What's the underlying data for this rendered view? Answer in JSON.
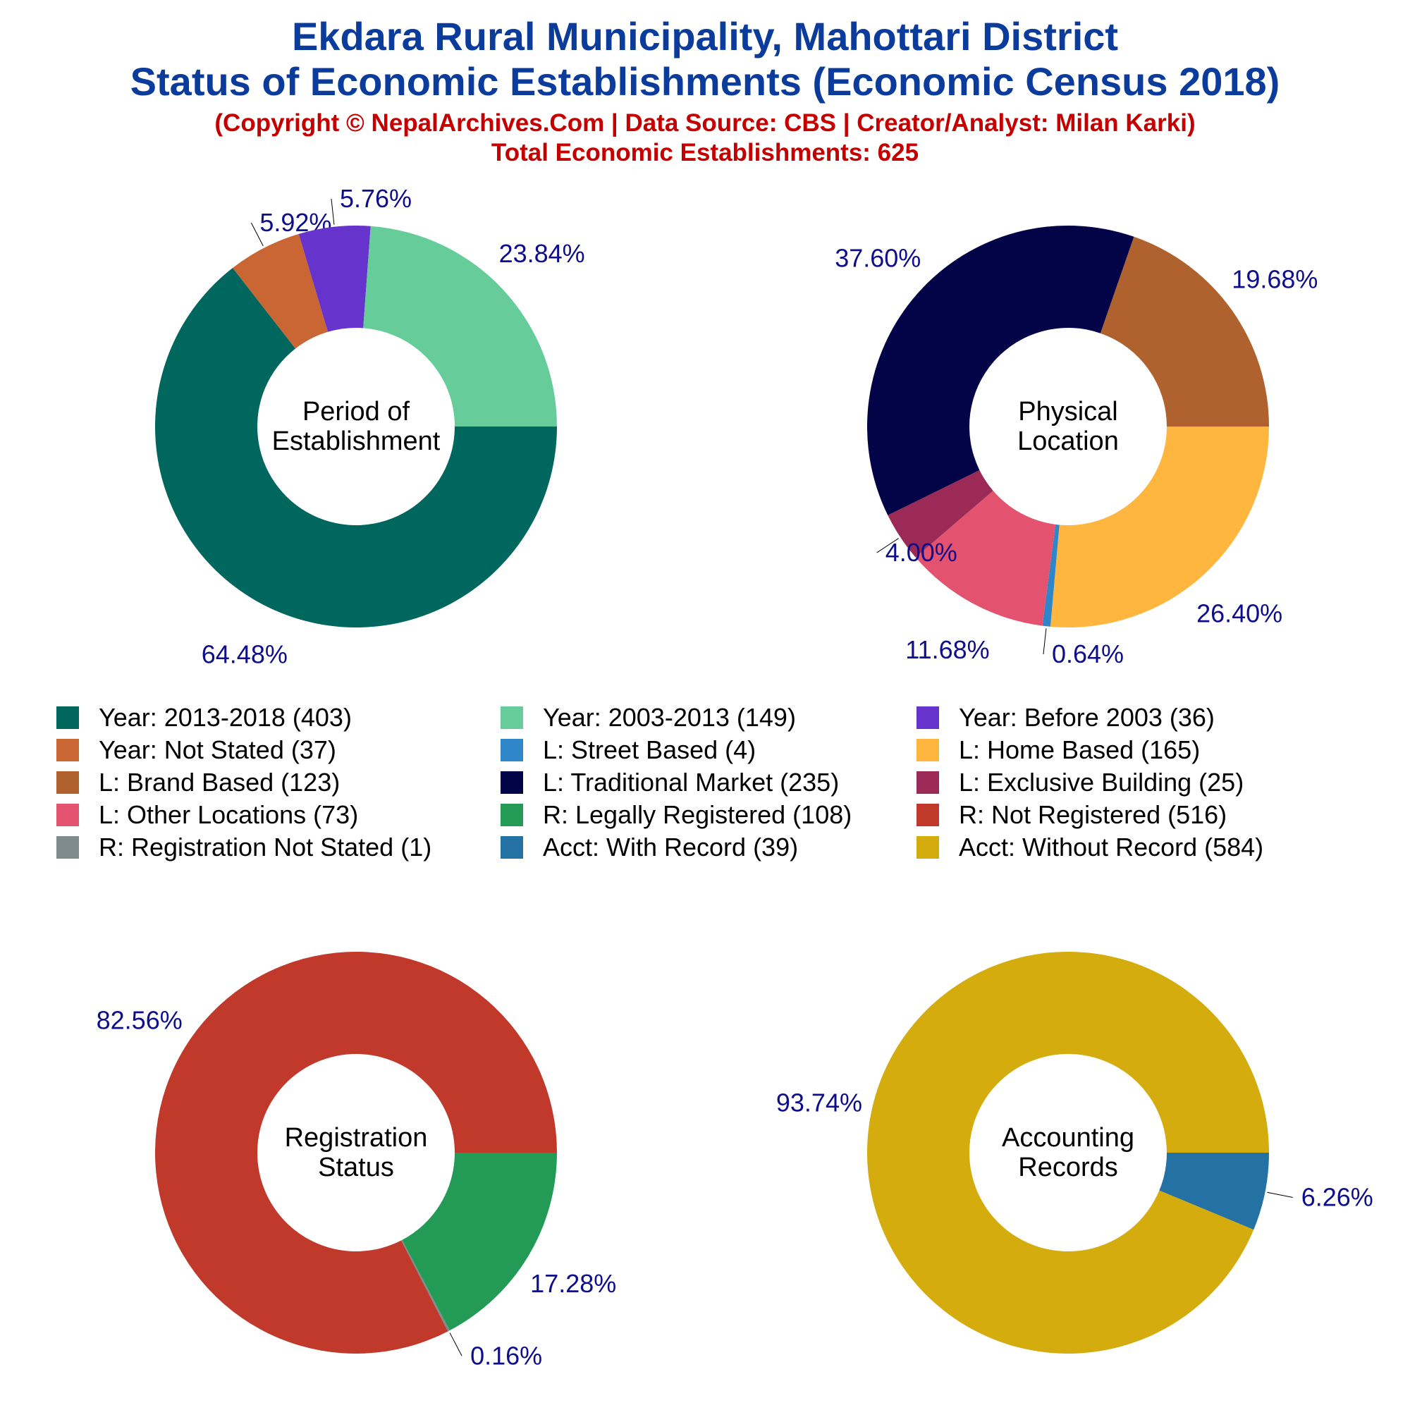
{
  "header": {
    "title_line1": "Ekdara Rural Municipality, Mahottari District",
    "title_line2": "Status of Economic Establishments (Economic Census 2018)",
    "copyright": "(Copyright © NepalArchives.Com | Data Source: CBS | Creator/Analyst: Milan Karki)",
    "total": "Total Economic Establishments: 625"
  },
  "colors": {
    "title": "#0B3C9C",
    "subtitle": "#C40000",
    "percent_label": "#0E0E8C"
  },
  "chart_data": [
    {
      "type": "pie",
      "center_label": [
        "Period of",
        "Establishment"
      ],
      "slices": [
        {
          "label": "Year: 2013-2018",
          "value": 403,
          "percent": "64.48%",
          "color": "#00675F"
        },
        {
          "label": "Year: Not Stated",
          "value": 37,
          "percent": "5.92%",
          "color": "#C96634"
        },
        {
          "label": "Year: Before 2003",
          "value": 36,
          "percent": "5.76%",
          "color": "#6633CC"
        },
        {
          "label": "Year: 2003-2013",
          "value": 149,
          "percent": "23.84%",
          "color": "#66CC99"
        }
      ]
    },
    {
      "type": "pie",
      "center_label": [
        "Physical",
        "Location"
      ],
      "slices": [
        {
          "label": "L: Home Based",
          "value": 165,
          "percent": "26.40%",
          "color": "#FFB63F"
        },
        {
          "label": "L: Street Based",
          "value": 4,
          "percent": "0.64%",
          "color": "#2F86C8"
        },
        {
          "label": "L: Other Locations",
          "value": 73,
          "percent": "11.68%",
          "color": "#E3526F"
        },
        {
          "label": "L: Exclusive Building",
          "value": 25,
          "percent": "4.00%",
          "color": "#9C2A57"
        },
        {
          "label": "L: Traditional Market",
          "value": 235,
          "percent": "37.60%",
          "color": "#030348"
        },
        {
          "label": "L: Brand Based",
          "value": 123,
          "percent": "19.68%",
          "color": "#B0622E"
        }
      ]
    },
    {
      "type": "pie",
      "center_label": [
        "Registration",
        "Status"
      ],
      "slices": [
        {
          "label": "R: Legally Registered",
          "value": 108,
          "percent": "17.28%",
          "color": "#239B56"
        },
        {
          "label": "R: Registration Not Stated",
          "value": 1,
          "percent": "0.16%",
          "color": "#7F8C8D"
        },
        {
          "label": "R: Not Registered",
          "value": 516,
          "percent": "82.56%",
          "color": "#C0392B"
        }
      ]
    },
    {
      "type": "pie",
      "center_label": [
        "Accounting",
        "Records"
      ],
      "slices": [
        {
          "label": "Acct: With Record",
          "value": 39,
          "percent": "6.26%",
          "color": "#2471A3"
        },
        {
          "label": "Acct: Without Record",
          "value": 584,
          "percent": "93.74%",
          "color": "#D4AC0D"
        }
      ]
    }
  ],
  "legend": [
    {
      "label": "Year: 2013-2018 (403)",
      "color": "#00675F"
    },
    {
      "label": "Year: 2003-2013 (149)",
      "color": "#66CC99"
    },
    {
      "label": "Year: Before 2003 (36)",
      "color": "#6633CC"
    },
    {
      "label": "Year: Not Stated (37)",
      "color": "#C96634"
    },
    {
      "label": "L: Street Based (4)",
      "color": "#2F86C8"
    },
    {
      "label": "L: Home Based (165)",
      "color": "#FFB63F"
    },
    {
      "label": "L: Brand Based (123)",
      "color": "#B0622E"
    },
    {
      "label": "L: Traditional Market (235)",
      "color": "#030348"
    },
    {
      "label": "L: Exclusive Building (25)",
      "color": "#9C2A57"
    },
    {
      "label": "L: Other Locations (73)",
      "color": "#E3526F"
    },
    {
      "label": "R: Legally Registered (108)",
      "color": "#239B56"
    },
    {
      "label": "R: Not Registered (516)",
      "color": "#C0392B"
    },
    {
      "label": "R: Registration Not Stated (1)",
      "color": "#7F8C8D"
    },
    {
      "label": "Acct: With Record (39)",
      "color": "#2471A3"
    },
    {
      "label": "Acct: Without Record (584)",
      "color": "#D4AC0D"
    }
  ]
}
